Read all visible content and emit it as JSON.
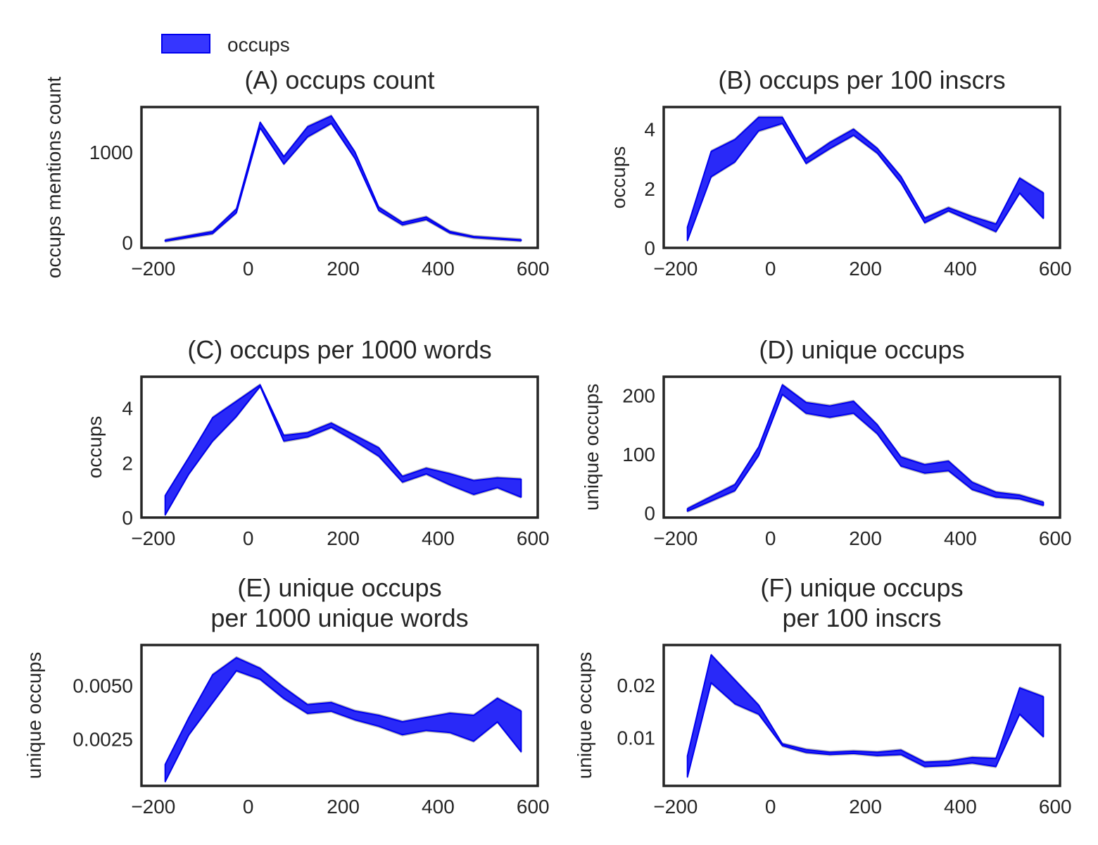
{
  "legend": {
    "label": "occups",
    "color": "#1a1aff"
  },
  "colors": {
    "band": "#1a1aff",
    "band_edge": "#0000ee",
    "ci_outer": "#9e9e9e",
    "frame": "#262626"
  },
  "x_ticks": [
    -200,
    0,
    200,
    400,
    600
  ],
  "x_tick_labels": [
    "−200",
    "0",
    "200",
    "400",
    "600"
  ],
  "chart_data": [
    {
      "id": "A",
      "type": "area",
      "title": [
        "(A) occups count"
      ],
      "ylabel": "occups mentions count",
      "xlim": [
        -225,
        610
      ],
      "ylim": [
        -60,
        1500
      ],
      "yticks": [
        0,
        1000
      ],
      "ytick_labels": [
        "0",
        "1000"
      ],
      "series": [
        {
          "name": "occups",
          "x": [
            -175,
            -75,
            -25,
            25,
            75,
            125,
            175,
            225,
            275,
            325,
            375,
            425,
            475,
            575
          ],
          "lower": [
            15,
            100,
            330,
            1270,
            870,
            1170,
            1320,
            930,
            355,
            195,
            255,
            105,
            55,
            20
          ],
          "upper": [
            25,
            120,
            370,
            1330,
            950,
            1280,
            1400,
            1000,
            390,
            220,
            280,
            120,
            65,
            30
          ]
        }
      ]
    },
    {
      "id": "B",
      "type": "area",
      "title": [
        "(B) occups per 100 inscrs"
      ],
      "ylabel": "occups",
      "xlim": [
        -225,
        610
      ],
      "ylim": [
        0,
        4.75
      ],
      "yticks": [
        0,
        2,
        4
      ],
      "ytick_labels": [
        "0",
        "2",
        "4"
      ],
      "series": [
        {
          "name": "occups",
          "x": [
            -175,
            -125,
            -75,
            -25,
            25,
            75,
            125,
            175,
            225,
            275,
            325,
            375,
            425,
            475,
            525,
            575
          ],
          "lower": [
            0.25,
            2.4,
            2.9,
            3.95,
            4.2,
            2.85,
            3.35,
            3.8,
            3.2,
            2.2,
            0.85,
            1.25,
            0.9,
            0.55,
            1.85,
            1.0
          ],
          "upper": [
            0.7,
            3.25,
            3.65,
            4.4,
            4.4,
            3.0,
            3.55,
            4.0,
            3.35,
            2.4,
            1.0,
            1.35,
            1.05,
            0.8,
            2.35,
            1.85
          ]
        }
      ]
    },
    {
      "id": "C",
      "type": "area",
      "title": [
        "(C) occups per 1000 words"
      ],
      "ylabel": "occups",
      "xlim": [
        -225,
        610
      ],
      "ylim": [
        0,
        5.15
      ],
      "yticks": [
        0,
        2,
        4
      ],
      "ytick_labels": [
        "0",
        "2",
        "4"
      ],
      "series": [
        {
          "name": "occups",
          "x": [
            -175,
            -125,
            -75,
            -25,
            25,
            75,
            125,
            175,
            225,
            275,
            325,
            375,
            425,
            475,
            525,
            575
          ],
          "lower": [
            0.1,
            1.6,
            2.8,
            3.7,
            4.8,
            2.8,
            2.95,
            3.3,
            2.8,
            2.25,
            1.3,
            1.6,
            1.2,
            0.85,
            1.1,
            0.75
          ],
          "upper": [
            0.8,
            2.2,
            3.65,
            4.25,
            4.85,
            3.0,
            3.1,
            3.45,
            3.0,
            2.55,
            1.5,
            1.8,
            1.6,
            1.35,
            1.45,
            1.4
          ]
        }
      ]
    },
    {
      "id": "D",
      "type": "area",
      "title": [
        "(D) unique occups"
      ],
      "ylabel": "unique occups",
      "xlim": [
        -225,
        610
      ],
      "ylim": [
        -8,
        232
      ],
      "yticks": [
        0,
        100,
        200
      ],
      "ytick_labels": [
        "0",
        "100",
        "200"
      ],
      "series": [
        {
          "name": "occups",
          "x": [
            -175,
            -75,
            -25,
            25,
            75,
            125,
            175,
            225,
            275,
            325,
            375,
            425,
            475,
            525,
            575
          ],
          "lower": [
            3,
            38,
            98,
            202,
            170,
            163,
            170,
            135,
            80,
            68,
            72,
            40,
            27,
            24,
            13
          ],
          "upper": [
            7,
            48,
            112,
            218,
            188,
            182,
            190,
            150,
            95,
            82,
            88,
            52,
            35,
            30,
            18
          ]
        }
      ]
    },
    {
      "id": "E",
      "type": "area",
      "title": [
        "(E) unique occups",
        "per 1000 unique words"
      ],
      "ylabel": "unique occups",
      "xlim": [
        -225,
        610
      ],
      "ylim": [
        0.0003,
        0.0069
      ],
      "yticks": [
        0.0025,
        0.005
      ],
      "ytick_labels": [
        "0.0025",
        "0.0050"
      ],
      "series": [
        {
          "name": "occups",
          "x": [
            -175,
            -125,
            -75,
            -25,
            25,
            75,
            125,
            175,
            225,
            275,
            325,
            375,
            425,
            475,
            525,
            575
          ],
          "lower": [
            0.0005,
            0.0027,
            0.0042,
            0.0057,
            0.0053,
            0.0044,
            0.0037,
            0.0038,
            0.0034,
            0.0031,
            0.0027,
            0.0029,
            0.0028,
            0.0024,
            0.0033,
            0.0019
          ],
          "upper": [
            0.0013,
            0.0035,
            0.0055,
            0.0063,
            0.0058,
            0.0049,
            0.0041,
            0.0042,
            0.0038,
            0.0036,
            0.0033,
            0.0035,
            0.0037,
            0.0036,
            0.0044,
            0.0038
          ]
        }
      ]
    },
    {
      "id": "F",
      "type": "area",
      "title": [
        "(F) unique occups",
        "per 100 inscrs"
      ],
      "ylabel": "unique occups",
      "xlim": [
        -225,
        610
      ],
      "ylim": [
        0.0008,
        0.0277
      ],
      "yticks": [
        0.01,
        0.02
      ],
      "ytick_labels": [
        "0.01",
        "0.02"
      ],
      "series": [
        {
          "name": "occups",
          "x": [
            -175,
            -125,
            -75,
            -25,
            25,
            75,
            125,
            175,
            225,
            275,
            325,
            375,
            425,
            475,
            525,
            575
          ],
          "lower": [
            0.0025,
            0.0205,
            0.0165,
            0.0145,
            0.0085,
            0.0072,
            0.0068,
            0.007,
            0.0066,
            0.0068,
            0.0045,
            0.0047,
            0.0052,
            0.0045,
            0.0145,
            0.0102
          ],
          "upper": [
            0.0065,
            0.0258,
            0.021,
            0.0162,
            0.0088,
            0.0077,
            0.0072,
            0.0074,
            0.0072,
            0.0076,
            0.0053,
            0.0055,
            0.0062,
            0.006,
            0.0195,
            0.0178
          ]
        }
      ]
    }
  ]
}
